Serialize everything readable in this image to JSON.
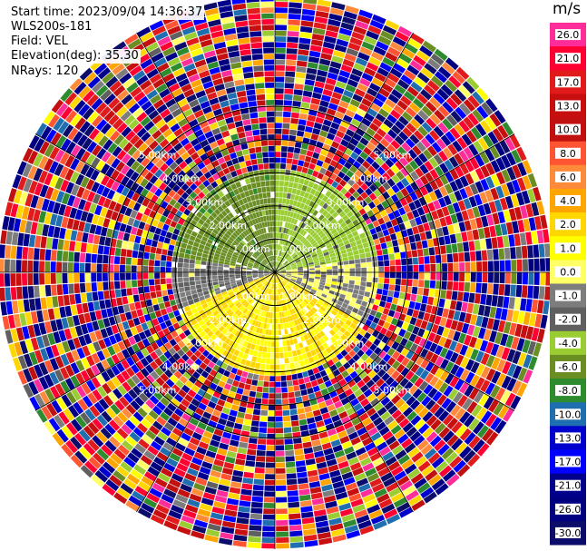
{
  "header": {
    "start_time": "Start time: 2023/09/04 14:36:37",
    "instrument": "WLS200s-181",
    "field": "Field: VEL",
    "elevation": "Elevation(deg): 35.30",
    "nrays": "NRays: 120"
  },
  "chart_data": {
    "type": "heatmap",
    "projection": "polar-ppi",
    "field": "VEL",
    "units": "m/s",
    "n_rays": 120,
    "elevation_deg": 35.3,
    "range_ring_labels": [
      "1.00km",
      "2.00km",
      "3.00km",
      "4.00km",
      "5.00km"
    ],
    "range_ring_values_km": [
      1,
      2,
      3,
      4,
      5
    ],
    "colorbar": {
      "label": "m/s",
      "ticks": [
        "26.0",
        "21.0",
        "17.0",
        "13.0",
        "10.0",
        "8.0",
        "6.0",
        "4.0",
        "2.0",
        "1.0",
        "0.0",
        "-1.0",
        "-2.0",
        "-4.0",
        "-6.0",
        "-8.0",
        "-10.0",
        "-13.0",
        "-17.0",
        "-21.0",
        "-26.0",
        "-30.0"
      ],
      "colors": [
        "#ff2d9a",
        "#ff0033",
        "#e11b1b",
        "#c80f0f",
        "#c01010",
        "#ff5533",
        "#ff8a3a",
        "#ffa500",
        "#ffd700",
        "#ffff00",
        "#ffff66",
        "#7d7d7d",
        "#606060",
        "#9acd32",
        "#6b8e23",
        "#2e8b2e",
        "#1f6fb0",
        "#0000cd",
        "#0000ff",
        "#00008b",
        "#000080",
        "#0c0c6a"
      ]
    },
    "sectors": [
      {
        "az_from": 0,
        "az_to": 80,
        "range_from_km": 0,
        "range_to_km": 1.9,
        "dominant_value": -3.0
      },
      {
        "az_from": 80,
        "az_to": 120,
        "range_from_km": 0,
        "range_to_km": 1.9,
        "dominant_value": 0.0
      },
      {
        "az_from": 120,
        "az_to": 250,
        "range_from_km": 0,
        "range_to_km": 1.9,
        "dominant_value": 2.0
      },
      {
        "az_from": 250,
        "az_to": 280,
        "range_from_km": 0,
        "range_to_km": 1.9,
        "dominant_value": -1.0
      },
      {
        "az_from": 280,
        "az_to": 360,
        "range_from_km": 0,
        "range_to_km": 1.9,
        "dominant_value": -5.0
      }
    ],
    "noise_range_km": [
      1.9,
      5.0
    ]
  }
}
